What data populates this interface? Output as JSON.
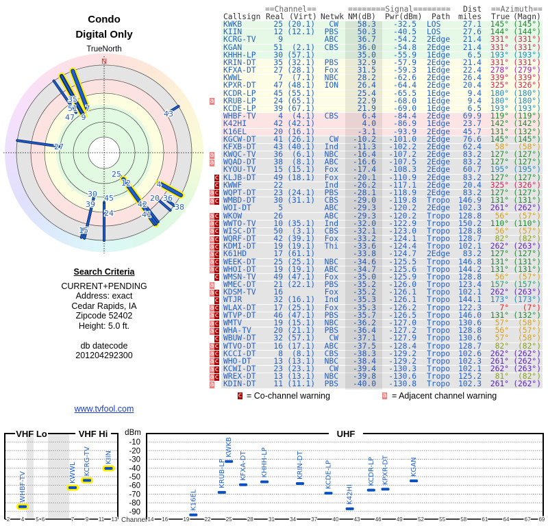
{
  "header": {
    "title": "Condo",
    "subtitle": "Digital Only",
    "north_label": "TrueNorth",
    "north_marker": "N"
  },
  "search": {
    "heading": "Search Criteria",
    "lines": [
      "CURRENT+PENDING",
      "Address: exact",
      "Cedar Rapids, IA",
      "Zipcode 52402",
      "Height: 5.0 ft."
    ],
    "datecode_label": "db datecode",
    "datecode": "201204292300"
  },
  "link": "www.tvfool.com",
  "table": {
    "group_headers": {
      "channel": "==Channel==",
      "signal": "========Signal========",
      "dist": "Dist",
      "azimuth": "==Azimuth=="
    },
    "columns": {
      "callsign": "Callsign",
      "real": "Real",
      "virt": "(Virt)",
      "netwk": "Netwk",
      "nm": "NM(dB)",
      "pwr": "Pwr(dBm)",
      "path": "Path",
      "dist": "miles",
      "true": "True",
      "magn": "(Magn)"
    },
    "rows": [
      [
        "",
        "KWKB",
        "25",
        "(20.1)",
        "CW",
        "58.3",
        "-32.5",
        "LOS",
        "27.1",
        "145°",
        "(145°)"
      ],
      [
        "",
        "KIIN",
        "12",
        "(12.1)",
        "PBS",
        "50.3",
        "-40.5",
        "LOS",
        "27.6",
        "144°",
        "(144°)"
      ],
      [
        "",
        "KCRG-TV",
        "9",
        "",
        "ABC",
        "36.7",
        "-54.2",
        "2Edge",
        "21.4",
        "331°",
        "(331°)"
      ],
      [
        "",
        "KGAN",
        "51",
        "(2.1)",
        "CBS",
        "36.0",
        "-54.8",
        "2Edge",
        "21.4",
        "331°",
        "(331°)"
      ],
      [
        "",
        "KHHH-LP",
        "30",
        "(57.1)",
        "",
        "35.0",
        "-55.9",
        "1Edge",
        "6.5",
        "193°",
        "(193°)"
      ],
      [
        "",
        "KRIN-DT",
        "35",
        "(32.1)",
        "PBS",
        "32.9",
        "-57.9",
        "2Edge",
        "21.4",
        "331°",
        "(331°)"
      ],
      [
        "",
        "KFXA-DT",
        "27",
        "(28.1)",
        "Fox",
        "31.5",
        "-59.3",
        "1Edge",
        "22.4",
        "278°",
        "(279°)"
      ],
      [
        "",
        "KWWL",
        "7",
        "(7.1)",
        "NBC",
        "28.2",
        "-62.6",
        "2Edge",
        "26.4",
        "339°",
        "(339°)"
      ],
      [
        "",
        "KPXR-DT",
        "47",
        "(48.1)",
        "ION",
        "26.4",
        "-64.4",
        "2Edge",
        "20.4",
        "325°",
        "(326°)"
      ],
      [
        "",
        "KCDR-LP",
        "45",
        "(55.1)",
        "",
        "25.4",
        "-65.5",
        "1Edge",
        "9.4",
        "180°",
        "(180°)"
      ],
      [
        "a",
        "KRUB-LP",
        "24",
        "(65.1)",
        "",
        "22.9",
        "-68.0",
        "1Edge",
        "9.4",
        "180°",
        "(180°)"
      ],
      [
        "",
        "KCDE-LP",
        "39",
        "(67.1)",
        "",
        "21.9",
        "-69.0",
        "1Edge",
        "6.5",
        "193°",
        "(193°)"
      ],
      [
        "",
        "WHBF-TV",
        "4",
        "(4.1)",
        "CBS",
        "6.4",
        "-84.4",
        "2Edge",
        "69.9",
        "119°",
        "(119°)"
      ],
      [
        "",
        "K42HI",
        "42",
        "(42.1)",
        "",
        "4.0",
        "-86.9",
        "1Edge",
        "23.7",
        "142°",
        "(142°)"
      ],
      [
        "",
        "K16EL",
        "20",
        "(16.1)",
        "",
        "-3.1",
        "-93.9",
        "2Edge",
        "45.7",
        "131°",
        "(132°)"
      ],
      [
        "",
        "KGCW-DT",
        "41",
        "(26.1)",
        "CW",
        "-10.2",
        "-101.0",
        "2Edge",
        "76.6",
        "145°",
        "(145°)"
      ],
      [
        "",
        "KFXB-DT",
        "43",
        "(40.1)",
        "Ind",
        "-11.3",
        "-102.2",
        "2Edge",
        "62.4",
        "58°",
        "(58°)"
      ],
      [
        "a",
        "KWQC-TV",
        "36",
        "(6.1)",
        "NBC",
        "-16.4",
        "-107.2",
        "2Edge",
        "83.2",
        "127°",
        "(127°)"
      ],
      [
        "a",
        "WQAD-DT",
        "38",
        "(8.1)",
        "ABC",
        "-16.6",
        "-107.5",
        "2Edge",
        "83.2",
        "127°",
        "(127°)"
      ],
      [
        "",
        "KYOU-TV",
        "15",
        "(15.1)",
        "Fox",
        "-17.4",
        "-108.3",
        "2Edge",
        "60.7",
        "195°",
        "(195°)"
      ],
      [
        "c",
        "KLJB-DT",
        "49",
        "(18.1)",
        "Fox",
        "-20.1",
        "-110.9",
        "2Edge",
        "83.2",
        "127°",
        "(127°)"
      ],
      [
        "c",
        "KWWF",
        "22",
        "",
        "Ind",
        "-26.2",
        "-117.1",
        "2Edge",
        "20.4",
        "325°",
        "(326°)"
      ],
      [
        "ac",
        "WQPT-DT",
        "23",
        "(24.1)",
        "PBS",
        "-28.1",
        "-118.9",
        "2Edge",
        "83.2",
        "127°",
        "(127°)"
      ],
      [
        "ac",
        "WMBD-DT",
        "30",
        "(31.1)",
        "CBS",
        "-29.0",
        "-119.8",
        "Tropo",
        "146.9",
        "131°",
        "(131°)"
      ],
      [
        "",
        "WOI-DT",
        "5",
        "",
        "ABC",
        "-29.3",
        "-120.2",
        "2Edge",
        "102.3",
        "261°",
        "(262°)"
      ],
      [
        "ac",
        "WKOW",
        "26",
        "",
        "ABC",
        "-29.3",
        "-120.2",
        "Tropo",
        "128.8",
        "56°",
        "(57°)"
      ],
      [
        "ac",
        "WWTO-TV",
        "10",
        "(35.1)",
        "Ind",
        "-32.0",
        "-122.9",
        "Tropo",
        "150.2",
        "110°",
        "(110°)"
      ],
      [
        "ac",
        "WISC-DT",
        "50",
        "(3.1)",
        "CBS",
        "-32.1",
        "-123.0",
        "Tropo",
        "128.8",
        "56°",
        "(57°)"
      ],
      [
        "ac",
        "WQRF-DT",
        "42",
        "(39.1)",
        "Fox",
        "-33.2",
        "-124.1",
        "Tropo",
        "128.7",
        "82°",
        "(82°)"
      ],
      [
        "ac",
        "KDMI-DT",
        "19",
        "(19.1)",
        "Thi",
        "-33.6",
        "-124.4",
        "Tropo",
        "102.1",
        "262°",
        "(263°)"
      ],
      [
        "ac",
        "K61HD",
        "17",
        "(61.1)",
        "",
        "-33.8",
        "-124.7",
        "2Edge",
        "83.2",
        "127°",
        "(127°)"
      ],
      [
        "ac",
        "WEEK-DT",
        "25",
        "(25.1)",
        "NBC",
        "-34.6",
        "-125.5",
        "Tropo",
        "146.8",
        "131°",
        "(131°)"
      ],
      [
        "ac",
        "WHOI-DT",
        "19",
        "(19.1)",
        "ABC",
        "-34.7",
        "-125.6",
        "Tropo",
        "144.2",
        "131°",
        "(131°)"
      ],
      [
        "c",
        "WMSN-TV",
        "49",
        "(47.1)",
        "Fox",
        "-35.0",
        "-125.9",
        "Tropo",
        "128.8",
        "56°",
        "(57°)"
      ],
      [
        "a",
        "WMEC-DT",
        "21",
        "(22.1)",
        "PBS",
        "-35.2",
        "-126.0",
        "Tropo",
        "123.4",
        "157°",
        "(157°)"
      ],
      [
        "ac",
        "KDSM-TV",
        "16",
        "",
        "Fox",
        "-35.2",
        "-126.1",
        "Tropo",
        "102.1",
        "262°",
        "(263°)"
      ],
      [
        "c",
        "WTJR",
        "32",
        "(16.1)",
        "Ind",
        "-35.3",
        "-126.1",
        "Tropo",
        "144.1",
        "173°",
        "(173°)"
      ],
      [
        "ac",
        "WLAX-DT",
        "17",
        "(25.1)",
        "Fox",
        "-35.3",
        "-126.2",
        "Tropo",
        "122.3",
        "7°",
        "(7°)"
      ],
      [
        "ac",
        "WTVP-DT",
        "46",
        "(47.1)",
        "PBS",
        "-35.7",
        "-126.5",
        "Tropo",
        "146.0",
        "131°",
        "(132°)"
      ],
      [
        "ac",
        "WMTV",
        "19",
        "(15.1)",
        "NBC",
        "-36.2",
        "-127.0",
        "Tropo",
        "130.6",
        "57°",
        "(58°)"
      ],
      [
        "ac",
        "WHA-TV",
        "20",
        "(21.1)",
        "PBS",
        "-36.4",
        "-127.2",
        "Tropo",
        "128.8",
        "56°",
        "(57°)"
      ],
      [
        "c",
        "WBUW-DT",
        "32",
        "(57.1)",
        "CW",
        "-37.1",
        "-127.9",
        "Tropo",
        "130.6",
        "57°",
        "(58°)"
      ],
      [
        "ac",
        "WTVO-DT",
        "16",
        "(17.1)",
        "ABC",
        "-37.5",
        "-128.4",
        "Tropo",
        "128.7",
        "82°",
        "(82°)"
      ],
      [
        "ac",
        "KCCI-DT",
        "8",
        "(8.1)",
        "CBS",
        "-38.3",
        "-129.2",
        "Tropo",
        "102.6",
        "262°",
        "(262°)"
      ],
      [
        "ac",
        "WHO-DT",
        "13",
        "(13.1)",
        "NBC",
        "-38.4",
        "-129.2",
        "Tropo",
        "102.3",
        "261°",
        "(262°)"
      ],
      [
        "ac",
        "KCWI-DT",
        "23",
        "(23.1)",
        "CW",
        "-39.4",
        "-130.3",
        "Tropo",
        "102.1",
        "262°",
        "(263°)"
      ],
      [
        "ac",
        "WREX-DT",
        "13",
        "(13.1)",
        "NBC",
        "-39.8",
        "-130.6",
        "Tropo",
        "125.2",
        "81°",
        "(82°)"
      ],
      [
        "a",
        "KDIN-DT",
        "11",
        "(11.1)",
        "PBS",
        "-40.0",
        "-130.8",
        "Tropo",
        "102.3",
        "261°",
        "(262°)"
      ]
    ]
  },
  "legend": {
    "co_icon": "c",
    "co_text": "= Co-channel warning",
    "adj_icon": "a",
    "adj_text": "= Adjacent channel warning"
  },
  "colors": {
    "text_blue": "#1f5fcc",
    "row_strong": "#e6f9e6",
    "row_good": "#fdfde6",
    "row_weak": "#fde4e4",
    "row_poor": "#e4e4e4",
    "co_warning": "#b40000",
    "adj_warning": "#f08080",
    "vhf_highlight": "#ffee00",
    "north": "#dd2222"
  },
  "chart_data": [
    {
      "type": "polar",
      "stations": [
        {
          "channel": "25",
          "azimuth": 145,
          "nm": 58.3
        },
        {
          "channel": "12",
          "azimuth": 144,
          "nm": 50.3
        },
        {
          "channel": "9",
          "azimuth": 331,
          "nm": 36.7
        },
        {
          "channel": "51",
          "azimuth": 331,
          "nm": 36.0
        },
        {
          "channel": "30",
          "azimuth": 193,
          "nm": 35.0
        },
        {
          "channel": "35",
          "azimuth": 331,
          "nm": 32.9
        },
        {
          "channel": "27",
          "azimuth": 278,
          "nm": 31.5
        },
        {
          "channel": "7",
          "azimuth": 339,
          "nm": 28.2
        },
        {
          "channel": "47",
          "azimuth": 325,
          "nm": 26.4
        },
        {
          "channel": "45",
          "azimuth": 180,
          "nm": 25.4
        },
        {
          "channel": "24",
          "azimuth": 180,
          "nm": 22.9
        },
        {
          "channel": "39",
          "azimuth": 193,
          "nm": 21.9
        },
        {
          "channel": "4",
          "azimuth": 119,
          "nm": 6.4
        },
        {
          "channel": "42",
          "azimuth": 142,
          "nm": 4.0
        },
        {
          "channel": "20",
          "azimuth": 131,
          "nm": -3.1
        },
        {
          "channel": "41",
          "azimuth": 145,
          "nm": -10.2
        },
        {
          "channel": "43",
          "azimuth": 58,
          "nm": -11.3
        },
        {
          "channel": "36",
          "azimuth": 127,
          "nm": -16.4
        },
        {
          "channel": "38",
          "azimuth": 127,
          "nm": -16.6
        },
        {
          "channel": "15",
          "azimuth": 195,
          "nm": -17.4
        }
      ]
    },
    {
      "type": "bar",
      "ylabel": "dBm",
      "xlabel": "Channel",
      "ylim": [
        -100,
        0
      ],
      "yticks": [
        "-10",
        "-20",
        "-30",
        "-40",
        "-50",
        "-60",
        "-70",
        "-80",
        "-90"
      ],
      "bands": {
        "vhf_lo": "VHF Lo",
        "vhf_hi": "VHF Hi",
        "uhf": "UHF"
      },
      "vhf_lo_ticks": [
        "2",
        "4",
        "5",
        "6"
      ],
      "vhf_hi_ticks": [
        "7",
        "9",
        "11",
        "13"
      ],
      "uhf_ticks": [
        "14",
        "16",
        "19",
        "22",
        "25",
        "28",
        "31",
        "34",
        "37",
        "40",
        "43",
        "46",
        "49",
        "52",
        "55",
        "58",
        "61",
        "64",
        "67",
        "69"
      ],
      "points": [
        {
          "label": "WHBF-TV",
          "channel": 4,
          "dbm": -84.4
        },
        {
          "label": "KWWL",
          "channel": 7,
          "dbm": -62.6
        },
        {
          "label": "KCRG-TV",
          "channel": 9,
          "dbm": -54.2
        },
        {
          "label": "KIIN",
          "channel": 12,
          "dbm": -40.5
        },
        {
          "label": "K16EL",
          "channel": 20,
          "dbm": -93.9
        },
        {
          "label": "KRUB-LP",
          "channel": 24,
          "dbm": -68.0
        },
        {
          "label": "KWKB",
          "channel": 25,
          "dbm": -32.5
        },
        {
          "label": "KFXA-DT",
          "channel": 27,
          "dbm": -59.3
        },
        {
          "label": "KHHH-LP",
          "channel": 30,
          "dbm": -55.9
        },
        {
          "label": "KRIN-DT",
          "channel": 35,
          "dbm": -57.9
        },
        {
          "label": "KCDE-LP",
          "channel": 39,
          "dbm": -69.0
        },
        {
          "label": "K42HI",
          "channel": 42,
          "dbm": -86.9
        },
        {
          "label": "KCDR-LP",
          "channel": 45,
          "dbm": -65.5
        },
        {
          "label": "KPXR-DT",
          "channel": 47,
          "dbm": -64.4
        },
        {
          "label": "KGAN",
          "channel": 51,
          "dbm": -54.8
        }
      ]
    }
  ]
}
